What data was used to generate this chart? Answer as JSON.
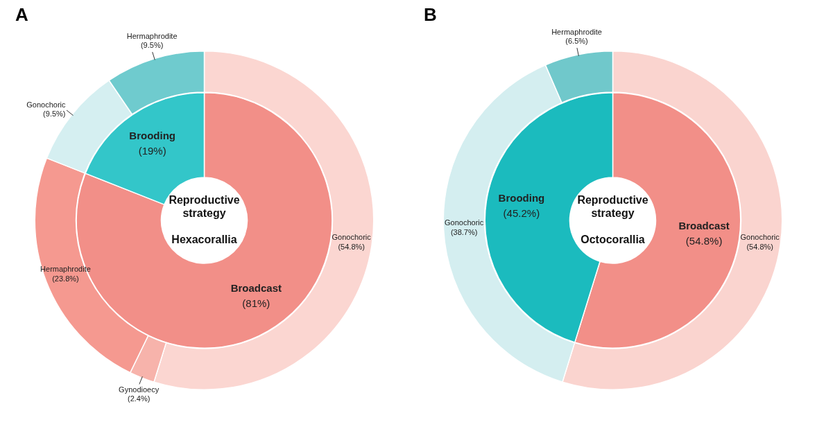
{
  "chart_data": [
    {
      "type": "donut",
      "title": "A",
      "annotations": [
        "Reproductive strategy",
        "Hexacorallia"
      ],
      "legend": false,
      "categories": [
        "Broadcast",
        "Brooding"
      ],
      "values": [
        81,
        19
      ],
      "value_labels": [
        "(81%)",
        "(19%)"
      ],
      "colors": [
        "#f28f88",
        "#33c6c9"
      ]
    },
    {
      "type": "donut",
      "legend": false,
      "categories": [
        "Gonochoric",
        "Gynodioecy",
        "Hermaphrodite",
        "Gonochoric",
        "Hermaphrodite"
      ],
      "values": [
        54.8,
        2.4,
        23.8,
        9.5,
        9.5
      ],
      "value_labels": [
        "(54.8%)",
        "(2.4%)",
        "(23.8%)",
        "(9.5%)",
        "(9.5%)"
      ],
      "colors": [
        "#fbd6d1",
        "#f7b3ab",
        "#f59990",
        "#d5eff1",
        "#6fcbce"
      ]
    },
    {
      "type": "donut",
      "title": "B",
      "annotations": [
        "Reproductive strategy",
        "Octocorallia"
      ],
      "legend": false,
      "categories": [
        "Broadcast",
        "Brooding"
      ],
      "values": [
        54.8,
        45.2
      ],
      "value_labels": [
        "(54.8%)",
        "(45.2%)"
      ],
      "colors": [
        "#f28f88",
        "#1bbbbe"
      ]
    },
    {
      "type": "donut",
      "legend": false,
      "categories": [
        "Gonochoric",
        "Gonochoric",
        "Hermaphrodite"
      ],
      "values": [
        54.8,
        38.7,
        6.5
      ],
      "value_labels": [
        "(54.8%)",
        "(38.7%)",
        "(6.5%)"
      ],
      "colors": [
        "#fad4cf",
        "#d4eef0",
        "#70c8cb"
      ]
    }
  ]
}
